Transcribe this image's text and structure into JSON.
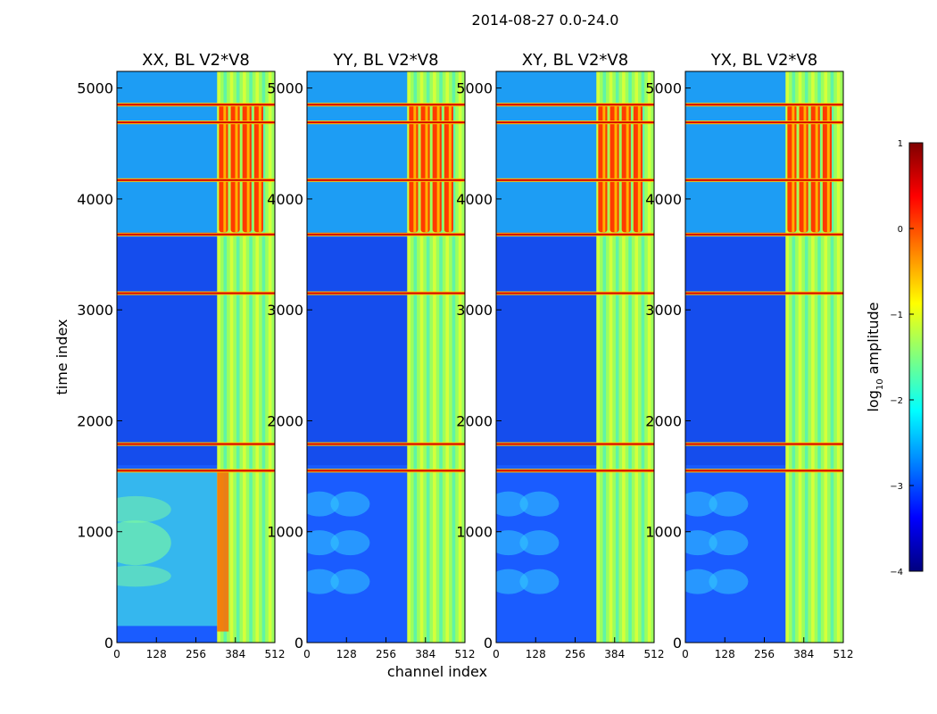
{
  "figure_title": "2014-08-27 0.0-24.0",
  "chart_data": [
    {
      "type": "heatmap",
      "title": "XX, BL V2*V8",
      "xlabel": "channel index",
      "ylabel": "time index",
      "xlim": [
        0,
        512
      ],
      "ylim": [
        0,
        5150
      ],
      "xticks": [
        0,
        128,
        256,
        384,
        512
      ],
      "yticks": [
        0,
        1000,
        2000,
        3000,
        4000,
        5000
      ],
      "bright_band_channels": [
        325,
        512
      ],
      "high_activity_time_ranges": [
        [
          3700,
          4850
        ]
      ],
      "rfi_time_rows": [
        1550,
        1790,
        3150,
        3680,
        4170,
        4690,
        4850
      ]
    },
    {
      "type": "heatmap",
      "title": "YY, BL V2*V8",
      "xlabel": "channel index",
      "ylabel": "",
      "xlim": [
        0,
        512
      ],
      "ylim": [
        0,
        5150
      ],
      "xticks": [
        0,
        128,
        256,
        384,
        512
      ],
      "yticks": [
        0,
        1000,
        2000,
        3000,
        4000,
        5000
      ],
      "bright_band_channels": [
        325,
        512
      ],
      "high_activity_time_ranges": [
        [
          3700,
          4850
        ]
      ],
      "rfi_time_rows": [
        1550,
        1790,
        3150,
        3680,
        4170,
        4690,
        4850
      ]
    },
    {
      "type": "heatmap",
      "title": "XY, BL V2*V8",
      "xlabel": "",
      "ylabel": "",
      "xlim": [
        0,
        512
      ],
      "ylim": [
        0,
        5150
      ],
      "xticks": [
        0,
        128,
        256,
        384,
        512
      ],
      "yticks": [
        0,
        1000,
        2000,
        3000,
        4000,
        5000
      ],
      "bright_band_channels": [
        325,
        512
      ],
      "high_activity_time_ranges": [
        [
          3700,
          4850
        ]
      ],
      "rfi_time_rows": [
        1550,
        1790,
        3150,
        3680,
        4170,
        4690,
        4850
      ]
    },
    {
      "type": "heatmap",
      "title": "YX, BL V2*V8",
      "xlabel": "",
      "ylabel": "",
      "xlim": [
        0,
        512
      ],
      "ylim": [
        0,
        5150
      ],
      "xticks": [
        0,
        128,
        256,
        384,
        512
      ],
      "yticks": [
        0,
        1000,
        2000,
        3000,
        4000,
        5000
      ],
      "bright_band_channels": [
        325,
        512
      ],
      "high_activity_time_ranges": [
        [
          3700,
          4850
        ]
      ],
      "rfi_time_rows": [
        1550,
        1790,
        3150,
        3680,
        4170,
        4690,
        4850
      ]
    }
  ],
  "colorbar": {
    "label_main": "log",
    "label_sub": "10",
    "label_tail": " amplitude",
    "range": [
      -4,
      1
    ],
    "ticks": [
      "1",
      "0",
      "−1",
      "−2",
      "−3",
      "−4"
    ],
    "colormap": "jet"
  }
}
